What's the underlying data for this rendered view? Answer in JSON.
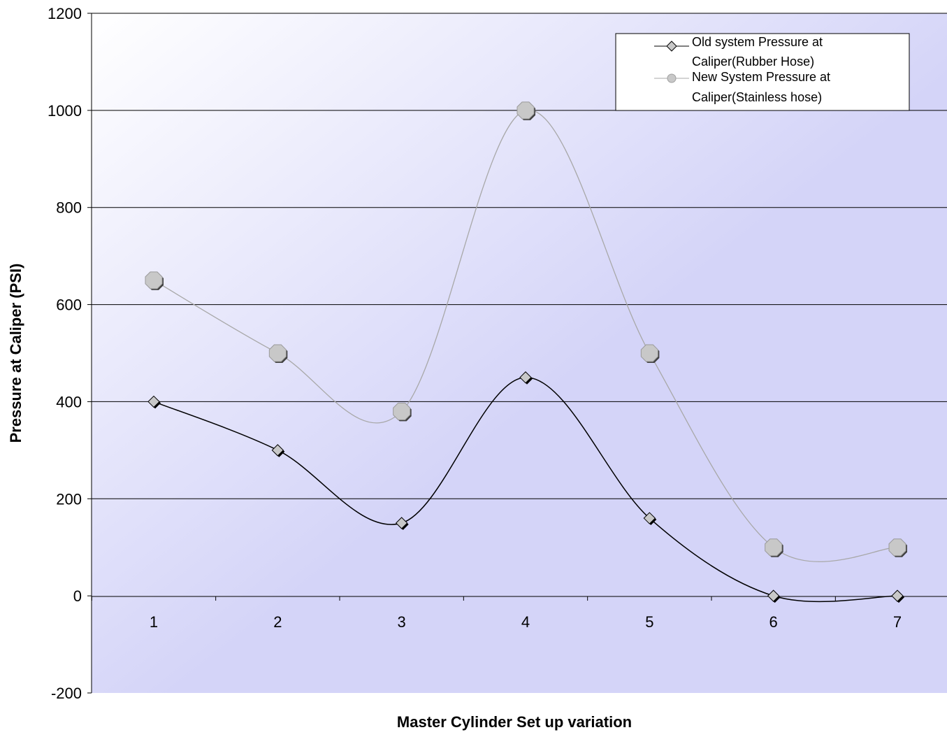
{
  "chart_data": {
    "type": "line",
    "title": "",
    "xlabel": "Master Cylinder Set up variation",
    "ylabel": "Pressure at Caliper (PSI)",
    "categories": [
      "1",
      "2",
      "3",
      "4",
      "5",
      "6",
      "7"
    ],
    "ylim": [
      -200,
      1200
    ],
    "yticks": [
      "1200",
      "1000",
      "800",
      "600",
      "400",
      "200",
      "0",
      "-200"
    ],
    "ytick_values": [
      1200,
      1000,
      800,
      600,
      400,
      200,
      0,
      -200
    ],
    "grid": true,
    "smooth": true,
    "legend_position": "top-right",
    "series": [
      {
        "name_line1": "Old system Pressure at",
        "name_line2": "Caliper(Rubber Hose)",
        "values": [
          400,
          300,
          150,
          450,
          160,
          0,
          0
        ],
        "color": "#000000",
        "marker": "diamond",
        "marker_color": "#c8c8c8"
      },
      {
        "name_line1": "New System Pressure at",
        "name_line2": "Caliper(Stainless hose)",
        "values": [
          650,
          500,
          380,
          1000,
          500,
          100,
          100
        ],
        "color": "#a8a8a8",
        "marker": "octagon",
        "marker_color": "#c8c8c8"
      }
    ],
    "colors": {
      "plot_gradient_start": "#ffffff",
      "plot_gradient_end": "#d4d4f8",
      "gridline": "#000000"
    }
  }
}
